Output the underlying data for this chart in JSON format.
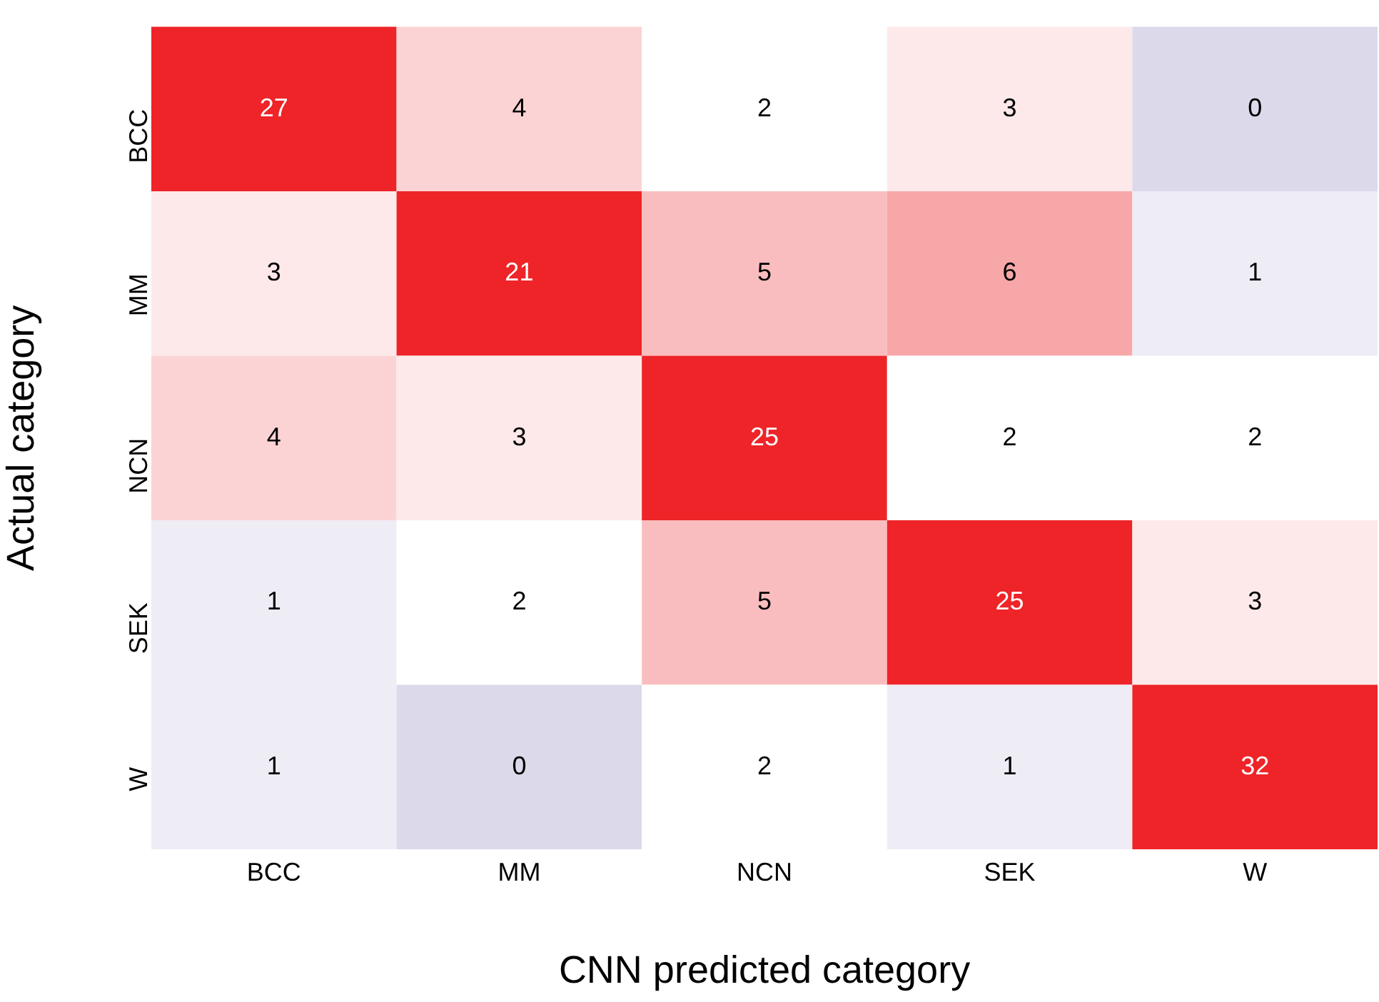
{
  "chart_data": {
    "type": "heatmap",
    "xlabel": "CNN predicted category",
    "ylabel": "Actual category",
    "categories": [
      "BCC",
      "MM",
      "NCN",
      "SEK",
      "W"
    ],
    "y_categories": [
      "BCC",
      "MM",
      "NCN",
      "SEK",
      "W"
    ],
    "cells": [
      [
        27,
        4,
        2,
        3,
        0
      ],
      [
        3,
        21,
        5,
        6,
        1
      ],
      [
        4,
        3,
        25,
        2,
        2
      ],
      [
        1,
        2,
        5,
        25,
        3
      ],
      [
        1,
        0,
        2,
        1,
        32
      ]
    ],
    "data_labels": true
  }
}
